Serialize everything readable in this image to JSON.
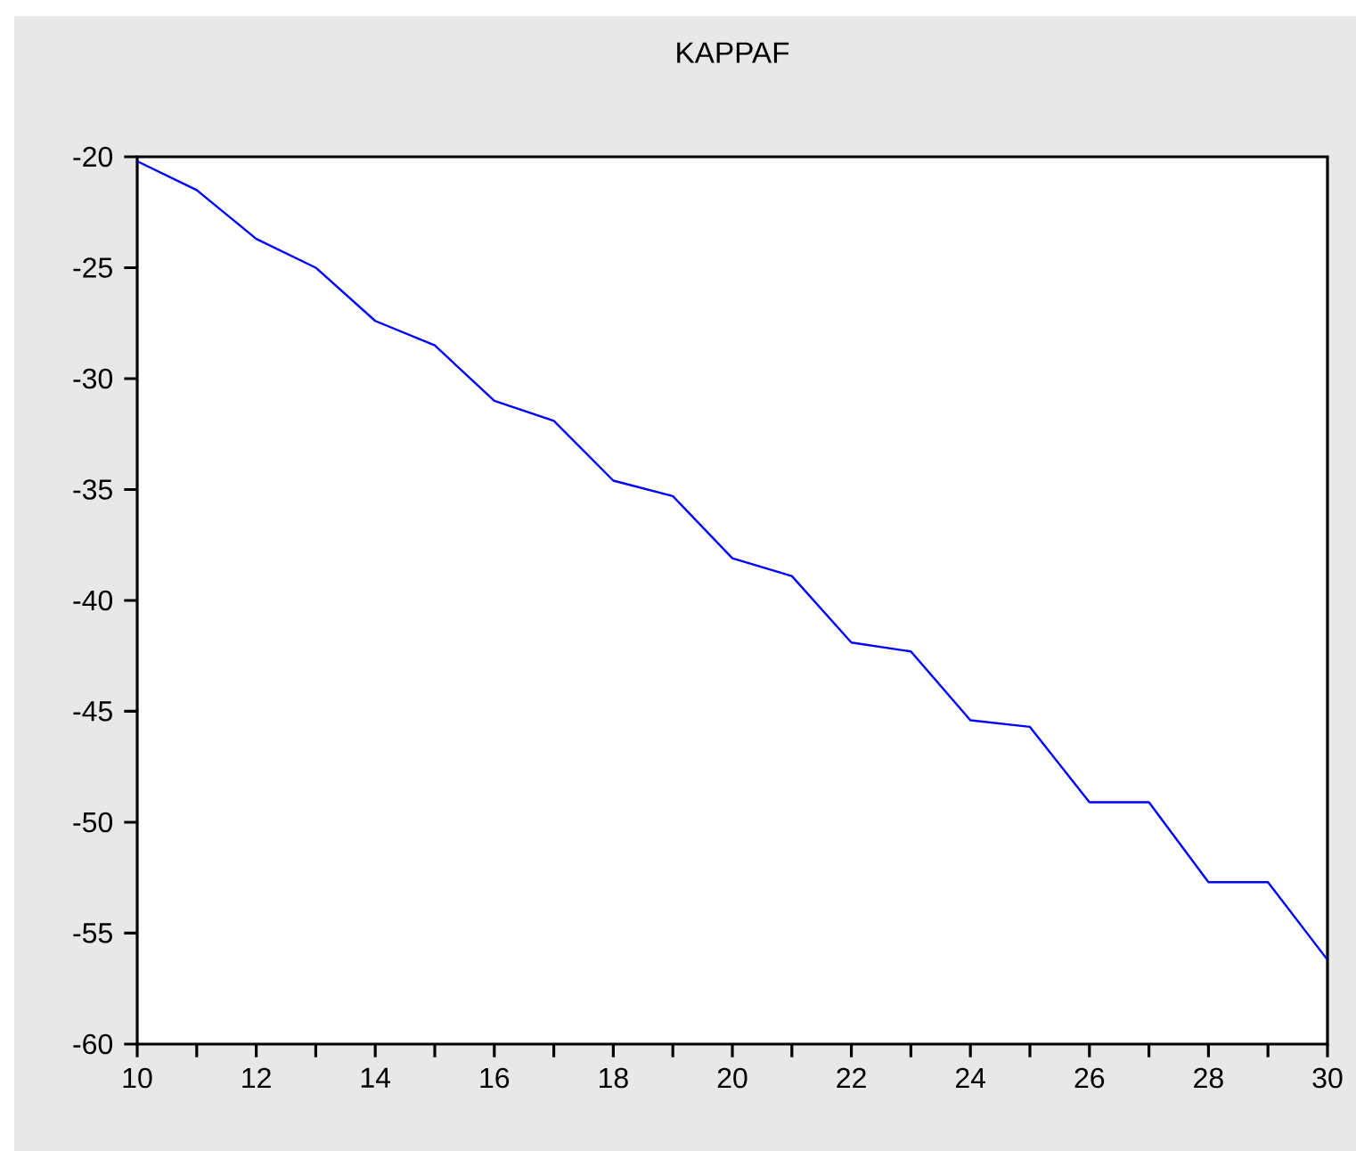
{
  "chart_data": {
    "type": "line",
    "title": "KAPPAF",
    "x": [
      10,
      11,
      12,
      13,
      14,
      15,
      16,
      17,
      18,
      19,
      20,
      21,
      22,
      23,
      24,
      25,
      26,
      27,
      28,
      29,
      30
    ],
    "series": [
      {
        "color": "#0000ff",
        "values": [
          -20.2,
          -21.5,
          -23.7,
          -25.0,
          -27.4,
          -28.5,
          -31.0,
          -31.9,
          -34.6,
          -35.3,
          -38.1,
          -38.9,
          -41.9,
          -42.3,
          -45.4,
          -45.7,
          -49.1,
          -49.1,
          -52.7,
          -52.7,
          -56.2
        ]
      }
    ],
    "xlim": [
      10,
      30
    ],
    "ylim": [
      -60,
      -20
    ],
    "xticks": [
      10,
      {
        "value": 11,
        "label": null
      },
      12,
      {
        "value": 13,
        "label": null
      },
      14,
      {
        "value": 15,
        "label": null
      },
      16,
      {
        "value": 17,
        "label": null
      },
      18,
      {
        "value": 19,
        "label": null
      },
      20,
      {
        "value": 21,
        "label": null
      },
      22,
      {
        "value": 23,
        "label": null
      },
      24,
      {
        "value": 25,
        "label": null
      },
      26,
      {
        "value": 27,
        "label": null
      },
      28,
      {
        "value": 29,
        "label": null
      },
      30
    ],
    "yticks": [
      -60,
      -55,
      -50,
      -45,
      -40,
      -35,
      -30,
      -25,
      -20
    ],
    "grid": false,
    "marker": "none",
    "line_style": "solid"
  }
}
